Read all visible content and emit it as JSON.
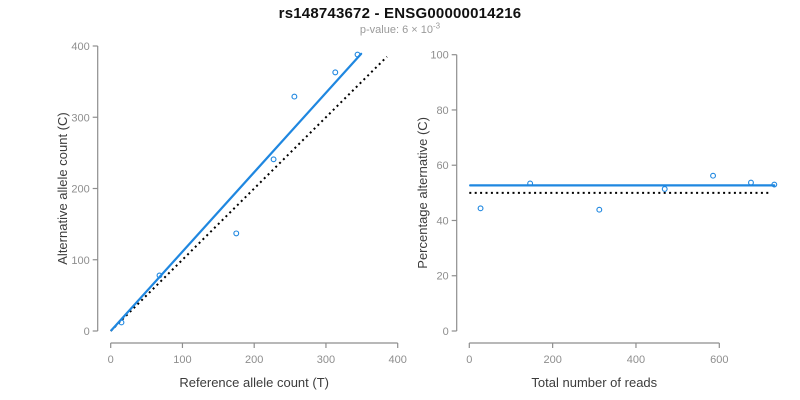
{
  "figure": {
    "title": "rs148743672 - ENSG00000014216",
    "subtitle": {
      "text": "p-value: 6 × 10",
      "superscript": "-3"
    }
  },
  "colors": {
    "accent_blue": "#1f87e0",
    "dotted_black": "#000000",
    "axis_gray": "#8e8e8e",
    "tick_label_gray": "#8e8e8e",
    "axis_title_dark": "#3c3c3c",
    "title_black": "#111111",
    "subtitle_gray": "#9a9a9a",
    "background": "#ffffff"
  },
  "chart_data": [
    {
      "type": "scatter",
      "panel": "left",
      "xlabel": "Reference allele count (T)",
      "ylabel": "Alternative allele count (C)",
      "xlim": [
        0,
        400
      ],
      "ylim": [
        0,
        400
      ],
      "xticks": [
        0,
        100,
        200,
        300,
        400
      ],
      "yticks": [
        0,
        100,
        200,
        300,
        400
      ],
      "grid": false,
      "points": [
        [
          15,
          12
        ],
        [
          68,
          78
        ],
        [
          175,
          137
        ],
        [
          227,
          241
        ],
        [
          256,
          329
        ],
        [
          313,
          363
        ],
        [
          344,
          388
        ]
      ],
      "lines": [
        {
          "name": "identity-line",
          "style": "dotted",
          "color": "#000000",
          "x1": 0,
          "y1": 0,
          "x2": 385,
          "y2": 385
        },
        {
          "name": "regression-line",
          "style": "solid",
          "color": "#1f87e0",
          "x1": 1,
          "y1": 1,
          "x2": 349,
          "y2": 389
        }
      ]
    },
    {
      "type": "scatter",
      "panel": "right",
      "xlabel": "Total number of reads",
      "ylabel": "Percentage alternative (C)",
      "xlim": [
        0,
        760
      ],
      "ylim": [
        0,
        100
      ],
      "xticks": [
        0,
        200,
        400,
        600
      ],
      "yticks": [
        0,
        20,
        40,
        60,
        80,
        100
      ],
      "grid": false,
      "points": [
        [
          27,
          44.4
        ],
        [
          146,
          53.4
        ],
        [
          312,
          43.9
        ],
        [
          469,
          51.4
        ],
        [
          585,
          56.2
        ],
        [
          676,
          53.7
        ],
        [
          732,
          53.0
        ]
      ],
      "lines": [
        {
          "name": "expected-percentage-line",
          "style": "dotted",
          "color": "#000000",
          "x1": 0,
          "y1": 50,
          "x2": 719,
          "y2": 50
        },
        {
          "name": "fitted-percentage-line",
          "style": "solid",
          "color": "#1f87e0",
          "x1": 2,
          "y1": 52.7,
          "x2": 732,
          "y2": 52.7
        }
      ]
    }
  ]
}
